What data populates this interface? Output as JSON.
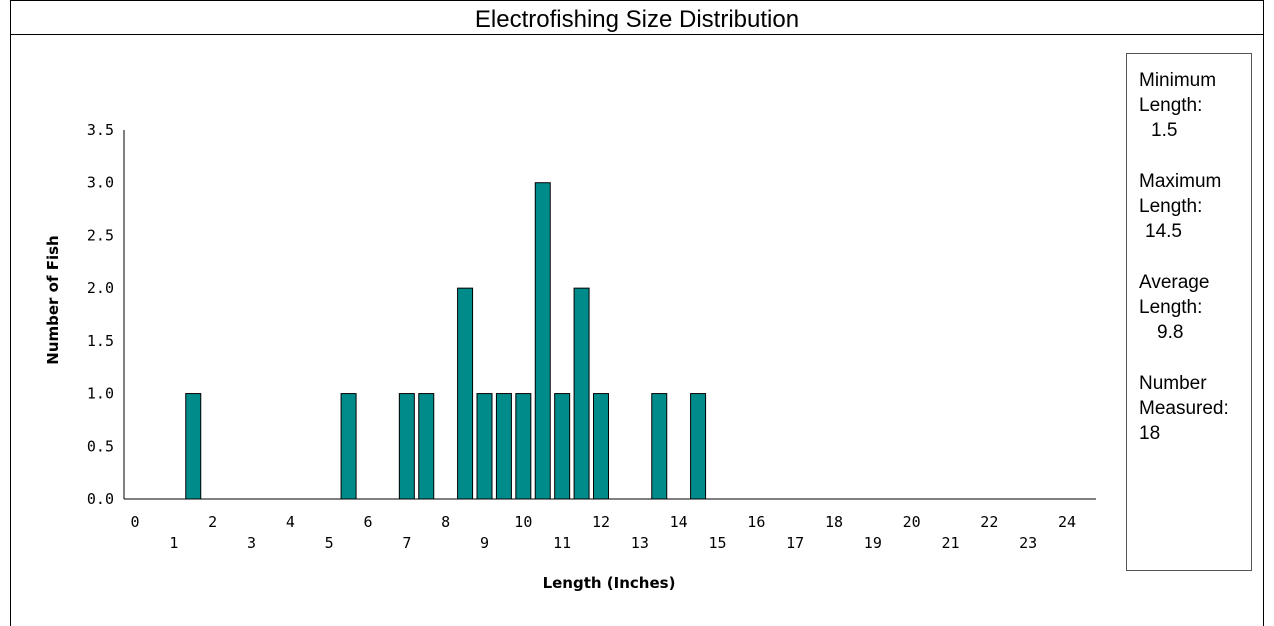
{
  "chart_data": {
    "type": "bar",
    "title": "Electrofishing Size Distribution",
    "xlabel": "Length (Inches)",
    "ylabel": "Number of Fish",
    "x_ticks": [
      0,
      1,
      2,
      3,
      4,
      5,
      6,
      7,
      8,
      9,
      10,
      11,
      12,
      13,
      14,
      15,
      16,
      17,
      18,
      19,
      20,
      21,
      22,
      23,
      24
    ],
    "y_ticks": [
      "0.0",
      "0.5",
      "1.0",
      "1.5",
      "2.0",
      "2.5",
      "3.0",
      "3.5"
    ],
    "xlim": [
      0,
      24
    ],
    "ylim": [
      0,
      3.5
    ],
    "bar_color": "#008B8B",
    "grid": false,
    "bars": [
      {
        "x": 1.5,
        "value": 1
      },
      {
        "x": 5.5,
        "value": 1
      },
      {
        "x": 7.0,
        "value": 1
      },
      {
        "x": 7.5,
        "value": 1
      },
      {
        "x": 8.5,
        "value": 2
      },
      {
        "x": 9.0,
        "value": 1
      },
      {
        "x": 9.5,
        "value": 1
      },
      {
        "x": 10.0,
        "value": 1
      },
      {
        "x": 10.5,
        "value": 3
      },
      {
        "x": 11.0,
        "value": 1
      },
      {
        "x": 11.5,
        "value": 2
      },
      {
        "x": 12.0,
        "value": 1
      },
      {
        "x": 13.5,
        "value": 1
      },
      {
        "x": 14.5,
        "value": 1
      }
    ]
  },
  "stats": {
    "min_label_1": "Minimum",
    "min_label_2": "Length:",
    "min_value": "1.5",
    "max_label_1": "Maximum",
    "max_label_2": "Length:",
    "max_value": "14.5",
    "avg_label_1": "Average",
    "avg_label_2": "Length:",
    "avg_value": "9.8",
    "num_label_1": "Number",
    "num_label_2": "Measured:",
    "num_value": "18"
  }
}
